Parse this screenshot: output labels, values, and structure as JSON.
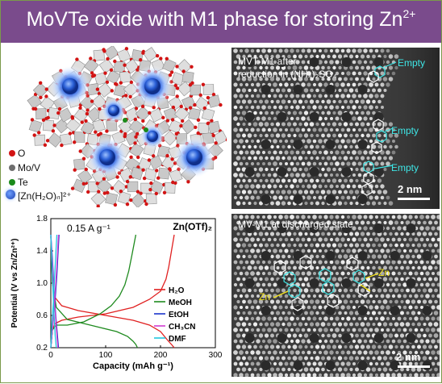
{
  "banner": {
    "title": "MoVTe oxide with M1 phase for storing Zn",
    "superscript": "2+"
  },
  "structure": {
    "legend": [
      {
        "symbol": "O",
        "label": "O",
        "color": "#d21414"
      },
      {
        "symbol": "Mo/V",
        "label": "Mo/V",
        "color": "#6e6e6e"
      },
      {
        "symbol": "Te",
        "label": "Te",
        "color": "#1a8a1a"
      },
      {
        "symbol": "Zn",
        "label": "[Zn(H₂O)ₙ]²⁺",
        "color": "#2a5fd6"
      }
    ]
  },
  "stem_top": {
    "caption_line1": "MVT-M1 after",
    "caption_line2": "reduction in (NH₄)₂SO₄",
    "annotations": [
      "Empty",
      "Empty",
      "Empty"
    ],
    "scale_bar": "2 nm"
  },
  "stem_bottom": {
    "caption": "MV-M1 at discharged state",
    "annotations": [
      "Zn",
      "Zn"
    ],
    "scale_bar": "2 nm"
  },
  "chart_data": {
    "type": "line",
    "title": "",
    "annotation_rate": "0.15 A g⁻¹",
    "annotation_salt": "Zn(OTf)₂",
    "xlabel": "Capacity (mAh g⁻¹)",
    "ylabel": "Potential (V vs Zn/Zn²⁺)",
    "xlim": [
      0,
      300
    ],
    "ylim": [
      0.2,
      1.8
    ],
    "xticks": [
      0,
      100,
      200,
      300
    ],
    "yticks": [
      0.2,
      0.6,
      1.0,
      1.4,
      1.8
    ],
    "legend_position": "right",
    "series": [
      {
        "name": "H₂O",
        "color": "#e02020",
        "discharge": {
          "x": [
            0,
            3,
            8,
            20,
            50,
            100,
            150,
            180,
            200,
            212,
            220,
            225
          ],
          "y": [
            1.58,
            1.0,
            0.82,
            0.72,
            0.66,
            0.6,
            0.54,
            0.48,
            0.4,
            0.3,
            0.24,
            0.2
          ]
        },
        "charge": {
          "x": [
            0,
            3,
            8,
            20,
            50,
            100,
            150,
            180,
            200,
            210,
            215,
            220,
            225
          ],
          "y": [
            0.2,
            0.42,
            0.5,
            0.54,
            0.58,
            0.62,
            0.7,
            0.8,
            0.9,
            1.05,
            1.2,
            1.4,
            1.6
          ]
        }
      },
      {
        "name": "MeOH",
        "color": "#1e8a1e",
        "discharge": {
          "x": [
            0,
            3,
            10,
            30,
            60,
            90,
            120,
            140,
            150,
            155,
            158
          ],
          "y": [
            1.58,
            1.0,
            0.7,
            0.55,
            0.5,
            0.45,
            0.4,
            0.34,
            0.28,
            0.24,
            0.2
          ]
        },
        "charge": {
          "x": [
            0,
            3,
            10,
            30,
            60,
            90,
            110,
            125,
            135,
            142,
            148,
            155
          ],
          "y": [
            0.2,
            0.42,
            0.48,
            0.48,
            0.52,
            0.62,
            0.72,
            0.84,
            0.98,
            1.15,
            1.35,
            1.6
          ]
        }
      },
      {
        "name": "EtOH",
        "color": "#1a33cc",
        "discharge": {
          "x": [
            0,
            3,
            6,
            9,
            12,
            14
          ],
          "y": [
            1.6,
            1.3,
            0.9,
            0.6,
            0.35,
            0.2
          ]
        },
        "charge": {
          "x": [
            0,
            4,
            8,
            11,
            13,
            15
          ],
          "y": [
            0.2,
            0.5,
            0.8,
            1.1,
            1.35,
            1.6
          ]
        }
      },
      {
        "name": "CH₃CN",
        "color": "#d23cd2",
        "discharge": {
          "x": [
            0,
            3,
            6,
            9,
            11,
            13
          ],
          "y": [
            1.6,
            1.2,
            0.85,
            0.55,
            0.35,
            0.2
          ]
        },
        "charge": {
          "x": [
            0,
            4,
            7,
            10,
            12,
            14
          ],
          "y": [
            0.2,
            0.5,
            0.8,
            1.1,
            1.35,
            1.6
          ]
        }
      },
      {
        "name": "DMF",
        "color": "#22c7e0",
        "discharge": {
          "x": [
            0,
            2,
            4,
            6,
            8,
            10
          ],
          "y": [
            1.6,
            1.2,
            0.9,
            0.6,
            0.35,
            0.2
          ]
        },
        "charge": {
          "x": [
            0,
            2,
            5,
            7,
            9,
            11
          ],
          "y": [
            0.2,
            0.5,
            0.8,
            1.1,
            1.35,
            1.6
          ]
        }
      }
    ]
  }
}
